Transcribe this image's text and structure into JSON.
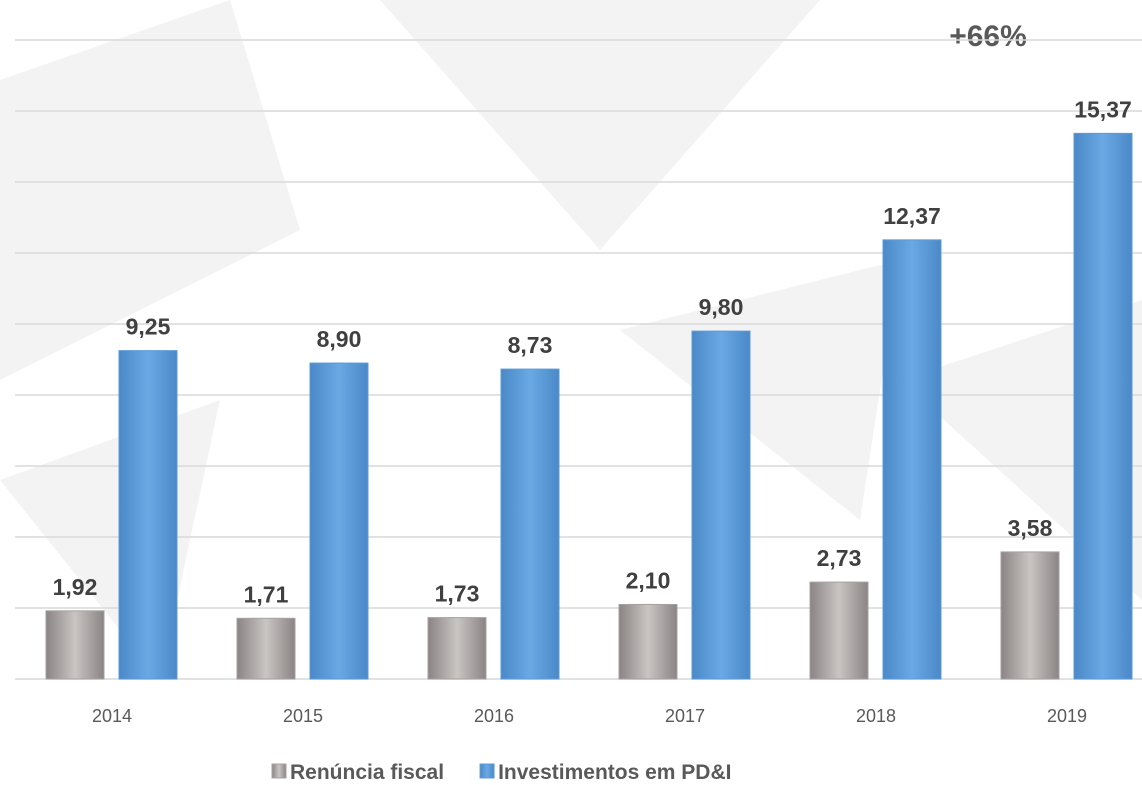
{
  "chart_data": {
    "type": "bar",
    "annotation": "+66%",
    "categories": [
      "2014",
      "2015",
      "2016",
      "2017",
      "2018",
      "2019"
    ],
    "series": [
      {
        "name": "Renúncia fiscal",
        "color": "#a6a2a0",
        "values": [
          1.92,
          1.71,
          1.73,
          2.1,
          2.73,
          3.58
        ],
        "value_labels": [
          "1,92",
          "1,71",
          "1,73",
          "2,10",
          "2,73",
          "3,58"
        ]
      },
      {
        "name": "Investimentos em PD&I",
        "color": "#5b9bd5",
        "values": [
          9.25,
          8.9,
          8.73,
          9.8,
          12.37,
          15.37
        ],
        "value_labels": [
          "9,25",
          "8,90",
          "8,73",
          "9,80",
          "12,37",
          "15,37"
        ]
      }
    ],
    "ylim": [
      0,
      18
    ],
    "yticks": [
      0,
      2,
      4,
      6,
      8,
      10,
      12,
      14,
      16,
      18
    ],
    "grid": true
  }
}
